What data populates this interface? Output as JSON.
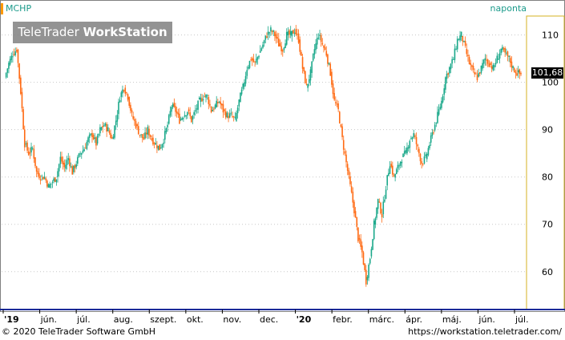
{
  "header": {
    "ticker": "MCHP",
    "period": "naponta",
    "watermark_light": "TeleTrader ",
    "watermark_bold": "WorkStation"
  },
  "footer": {
    "copyright": "© 2020 TeleTrader Software GmbH",
    "site": "https://workstation.teletrader.com/"
  },
  "last_price_label": "101,68",
  "colors": {
    "up": "#1aa88a",
    "down": "#ff6a13",
    "accent": "#ffaa00",
    "grid": "#c8c8c8"
  },
  "chart_data": {
    "type": "candlestick",
    "title": "MCHP",
    "xlabel": "",
    "ylabel": "",
    "ylim": [
      52,
      114
    ],
    "y_ticks": [
      60,
      70,
      80,
      90,
      100,
      110
    ],
    "y_tick_labels": [
      "60",
      "70",
      "80",
      "90",
      "100",
      "110"
    ],
    "x_tick_labels": [
      "'19",
      "jún.",
      "júl.",
      "aug.",
      "szept.",
      "okt.",
      "nov.",
      "dec.",
      "'20",
      "febr.",
      "márc.",
      "ápr.",
      "máj.",
      "jún.",
      "júl."
    ],
    "last_price": 101.68,
    "grid": true,
    "series": [
      {
        "name": "MCHP",
        "values": [
          [
            0,
            101
          ],
          [
            3,
            104
          ],
          [
            6,
            106
          ],
          [
            9,
            107
          ],
          [
            12,
            98
          ],
          [
            15,
            87
          ],
          [
            18,
            85
          ],
          [
            21,
            86
          ],
          [
            24,
            81
          ],
          [
            27,
            80
          ],
          [
            30,
            80
          ],
          [
            33,
            78
          ],
          [
            36,
            79
          ],
          [
            39,
            80
          ],
          [
            42,
            84
          ],
          [
            45,
            82
          ],
          [
            48,
            84
          ],
          [
            51,
            81
          ],
          [
            54,
            83
          ],
          [
            57,
            85
          ],
          [
            60,
            86
          ],
          [
            63,
            88
          ],
          [
            66,
            89
          ],
          [
            69,
            87
          ],
          [
            72,
            90
          ],
          [
            75,
            91
          ],
          [
            78,
            90
          ],
          [
            81,
            88
          ],
          [
            84,
            92
          ],
          [
            87,
            97
          ],
          [
            90,
            99
          ],
          [
            93,
            97
          ],
          [
            96,
            93
          ],
          [
            99,
            91
          ],
          [
            102,
            89
          ],
          [
            105,
            88
          ],
          [
            108,
            90
          ],
          [
            111,
            88
          ],
          [
            114,
            87
          ],
          [
            117,
            86
          ],
          [
            120,
            88
          ],
          [
            123,
            91
          ],
          [
            126,
            95
          ],
          [
            129,
            94
          ],
          [
            132,
            92
          ],
          [
            135,
            93
          ],
          [
            138,
            94
          ],
          [
            141,
            92
          ],
          [
            144,
            94
          ],
          [
            147,
            96
          ],
          [
            150,
            97
          ],
          [
            153,
            97
          ],
          [
            156,
            94
          ],
          [
            159,
            95
          ],
          [
            162,
            96
          ],
          [
            165,
            94
          ],
          [
            168,
            93
          ],
          [
            171,
            93
          ],
          [
            174,
            92
          ],
          [
            177,
            96
          ],
          [
            180,
            99
          ],
          [
            183,
            103
          ],
          [
            186,
            105
          ],
          [
            189,
            104
          ],
          [
            192,
            106
          ],
          [
            195,
            108
          ],
          [
            198,
            110
          ],
          [
            201,
            111
          ],
          [
            204,
            110
          ],
          [
            207,
            108
          ],
          [
            210,
            107
          ],
          [
            213,
            110
          ],
          [
            216,
            110
          ],
          [
            219,
            111
          ],
          [
            222,
            109
          ],
          [
            225,
            103
          ],
          [
            228,
            99
          ],
          [
            231,
            102
          ],
          [
            234,
            107
          ],
          [
            237,
            110
          ],
          [
            240,
            108
          ],
          [
            243,
            106
          ],
          [
            246,
            102
          ],
          [
            249,
            96
          ],
          [
            252,
            94
          ],
          [
            255,
            88
          ],
          [
            258,
            83
          ],
          [
            261,
            78
          ],
          [
            264,
            73
          ],
          [
            267,
            67
          ],
          [
            270,
            64
          ],
          [
            273,
            58
          ],
          [
            276,
            63
          ],
          [
            279,
            70
          ],
          [
            282,
            75
          ],
          [
            285,
            72
          ],
          [
            288,
            78
          ],
          [
            291,
            83
          ],
          [
            294,
            80
          ],
          [
            297,
            82
          ],
          [
            300,
            84
          ],
          [
            303,
            85
          ],
          [
            306,
            88
          ],
          [
            309,
            89
          ],
          [
            312,
            86
          ],
          [
            315,
            83
          ],
          [
            318,
            84
          ],
          [
            321,
            87
          ],
          [
            324,
            90
          ],
          [
            327,
            93
          ],
          [
            330,
            96
          ],
          [
            333,
            101
          ],
          [
            336,
            103
          ],
          [
            339,
            105
          ],
          [
            342,
            109
          ],
          [
            345,
            110
          ],
          [
            348,
            107
          ],
          [
            351,
            104
          ],
          [
            354,
            102
          ],
          [
            357,
            101
          ],
          [
            360,
            103
          ],
          [
            363,
            105
          ],
          [
            366,
            104
          ],
          [
            369,
            103
          ],
          [
            372,
            105
          ],
          [
            375,
            107
          ],
          [
            378,
            106
          ],
          [
            381,
            105
          ],
          [
            384,
            103
          ],
          [
            387,
            102
          ],
          [
            390,
            101.68
          ]
        ]
      }
    ]
  }
}
